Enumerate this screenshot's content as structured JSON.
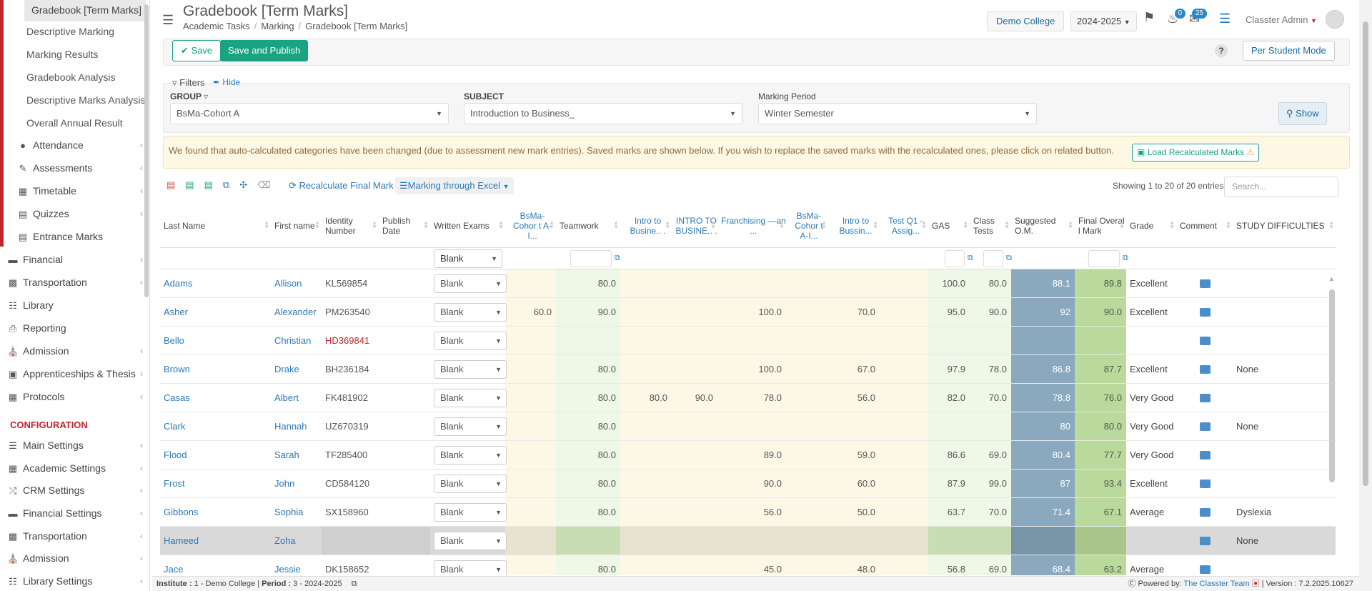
{
  "sidebar": {
    "sub_items": [
      "Gradebook [Term Marks]",
      "Descriptive Marking",
      "Marking Results",
      "Gradebook Analysis",
      "Descriptive Marks Analysis",
      "Overall Annual Result"
    ],
    "items": [
      {
        "label": "Attendance",
        "icon": "user-icon"
      },
      {
        "label": "Assessments",
        "icon": "pencil-icon"
      },
      {
        "label": "Timetable",
        "icon": "calendar-icon"
      },
      {
        "label": "Quizzes",
        "icon": "list-icon"
      },
      {
        "label": "Entrance Marks",
        "icon": "list-icon"
      },
      {
        "label": "Financial",
        "icon": "money-icon"
      },
      {
        "label": "Transportation",
        "icon": "bus-icon"
      },
      {
        "label": "Library",
        "icon": "book-icon"
      },
      {
        "label": "Reporting",
        "icon": "printer-icon"
      },
      {
        "label": "Admission",
        "icon": "building-icon"
      },
      {
        "label": "Apprenticeships & Thesis",
        "icon": "box-icon"
      },
      {
        "label": "Protocols",
        "icon": "grid-icon"
      }
    ],
    "config_label": "CONFIGURATION",
    "config_items": [
      {
        "label": "Main Settings",
        "icon": "sliders-icon"
      },
      {
        "label": "Academic Settings",
        "icon": "grid-icon"
      },
      {
        "label": "CRM Settings",
        "icon": "shuffle-icon"
      },
      {
        "label": "Financial Settings",
        "icon": "money-icon"
      },
      {
        "label": "Transportation",
        "icon": "bus-icon"
      },
      {
        "label": "Admission",
        "icon": "building-icon"
      },
      {
        "label": "Library Settings",
        "icon": "book-icon"
      }
    ]
  },
  "header": {
    "title": "Gradebook [Term Marks]",
    "breadcrumbs": [
      "Academic Tasks",
      "Marking",
      "Gradebook [Term Marks]"
    ],
    "college": "Demo College",
    "year": "2024-2025",
    "notif_count": "0",
    "msg_count": "25",
    "user": "Classter Admin"
  },
  "toolbar": {
    "save": "Save",
    "save_publish": "Save and Publish",
    "help": "?",
    "per_student": "Per Student Mode"
  },
  "filters": {
    "title": "Filters",
    "hide": "Hide",
    "group_label": "GROUP",
    "group_value": "BsMa-Cohort A",
    "subject_label": "SUBJECT",
    "subject_value": "Introduction to Business_",
    "period_label": "Marking Period",
    "period_value": "Winter Semester",
    "show": "Show"
  },
  "alert": {
    "text": "We found that auto-calculated categories have been changed (due to assessment new mark entries). Saved marks are shown below. If you wish to replace the saved marks with the recalculated ones, please click on related button.",
    "button": "Load Recalculated Marks"
  },
  "table_tools": {
    "recalc": "Recalculate Final Mark",
    "excel": "Marking through Excel",
    "showing": "Showing 1 to 20 of 20 entries",
    "search_placeholder": "Search..."
  },
  "columns": [
    "Last Name",
    "First name",
    "Identity Number",
    "Publish Date",
    "Written Exams",
    "BsMa-Cohor t A-I...",
    "Teamwork",
    "Intro to Busine.. .",
    "INTRO TO BUSINE.. .",
    "Franchising —an ...",
    "BsMa-Cohor t A-I...",
    "Intro to Bussin...",
    "Test Q1 - Assig...",
    "GAS",
    "Class Tests",
    "Suggested O.M.",
    "Final Overal l Mark",
    "Grade",
    "Comment",
    "STUDY DIFFICULTIES"
  ],
  "filter_blank": "Blank",
  "rows": [
    {
      "last": "Adams",
      "first": "Allison",
      "id": "KL569854",
      "we": "Blank",
      "c1": "",
      "tw": "80.0",
      "i1": "",
      "i2": "",
      "fr": "",
      "c2": "",
      "ib": "",
      "tq": "",
      "gas": "100.0",
      "ct": "80.0",
      "som": "88.1",
      "fom": "89.8",
      "grade": "Excellent",
      "sd": ""
    },
    {
      "last": "Asher",
      "first": "Alexander",
      "id": "PM263540",
      "we": "Blank",
      "c1": "60.0",
      "tw": "90.0",
      "i1": "",
      "i2": "",
      "fr": "100.0",
      "c2": "",
      "ib": "70.0",
      "tq": "",
      "gas": "95.0",
      "ct": "90.0",
      "som": "92",
      "fom": "90.0",
      "grade": "Excellent",
      "sd": ""
    },
    {
      "last": "Bello",
      "first": "Christian",
      "id": "HD369841",
      "we": "Blank",
      "c1": "",
      "tw": "",
      "i1": "",
      "i2": "",
      "fr": "",
      "c2": "",
      "ib": "",
      "tq": "",
      "gas": "",
      "ct": "",
      "som": "",
      "fom": "",
      "grade": "",
      "sd": ""
    },
    {
      "last": "Brown",
      "first": "Drake",
      "id": "BH236184",
      "we": "Blank",
      "c1": "",
      "tw": "80.0",
      "i1": "",
      "i2": "",
      "fr": "100.0",
      "c2": "",
      "ib": "67.0",
      "tq": "",
      "gas": "97.9",
      "ct": "78.0",
      "som": "86.8",
      "fom": "87.7",
      "grade": "Excellent",
      "sd": "None"
    },
    {
      "last": "Casas",
      "first": "Albert",
      "id": "FK481902",
      "we": "Blank",
      "c1": "",
      "tw": "80.0",
      "i1": "80.0",
      "i2": "90.0",
      "fr": "78.0",
      "c2": "",
      "ib": "56.0",
      "tq": "",
      "gas": "82.0",
      "ct": "70.0",
      "som": "78.8",
      "fom": "76.0",
      "grade": "Very Good",
      "sd": ""
    },
    {
      "last": "Clark",
      "first": "Hannah",
      "id": "UZ670319",
      "we": "Blank",
      "c1": "",
      "tw": "80.0",
      "i1": "",
      "i2": "",
      "fr": "",
      "c2": "",
      "ib": "",
      "tq": "",
      "gas": "",
      "ct": "",
      "som": "80",
      "fom": "80.0",
      "grade": "Very Good",
      "sd": "None"
    },
    {
      "last": "Flood",
      "first": "Sarah",
      "id": "TF285400",
      "we": "Blank",
      "c1": "",
      "tw": "80.0",
      "i1": "",
      "i2": "",
      "fr": "89.0",
      "c2": "",
      "ib": "59.0",
      "tq": "",
      "gas": "86.6",
      "ct": "69.0",
      "som": "80.4",
      "fom": "77.7",
      "grade": "Very Good",
      "sd": ""
    },
    {
      "last": "Frost",
      "first": "John",
      "id": "CD584120",
      "we": "Blank",
      "c1": "",
      "tw": "80.0",
      "i1": "",
      "i2": "",
      "fr": "90.0",
      "c2": "",
      "ib": "60.0",
      "tq": "",
      "gas": "87.9",
      "ct": "99.0",
      "som": "87",
      "fom": "93.4",
      "grade": "Excellent",
      "sd": ""
    },
    {
      "last": "Gibbons",
      "first": "Sophia",
      "id": "SX158960",
      "we": "Blank",
      "c1": "",
      "tw": "80.0",
      "i1": "",
      "i2": "",
      "fr": "56.0",
      "c2": "",
      "ib": "50.0",
      "tq": "",
      "gas": "63.7",
      "ct": "70.0",
      "som": "71.4",
      "fom": "67.1",
      "grade": "Average",
      "sd": "Dyslexia"
    },
    {
      "last": "Hameed",
      "first": "Zoha",
      "id": "",
      "we": "Blank",
      "c1": "",
      "tw": "",
      "i1": "",
      "i2": "",
      "fr": "",
      "c2": "",
      "ib": "",
      "tq": "",
      "gas": "",
      "ct": "",
      "som": "",
      "fom": "",
      "grade": "",
      "sd": "None"
    },
    {
      "last": "Jace",
      "first": "Jessie",
      "id": "DK158652",
      "we": "Blank",
      "c1": "",
      "tw": "80.0",
      "i1": "",
      "i2": "",
      "fr": "45.0",
      "c2": "",
      "ib": "48.0",
      "tq": "",
      "gas": "56.8",
      "ct": "69.0",
      "som": "68.4",
      "fom": "63.2",
      "grade": "Average",
      "sd": ""
    }
  ],
  "footer": {
    "institute_label": "Institute :",
    "institute": "1 - Demo College",
    "period_label": "Period :",
    "period": "3 - 2024-2025",
    "powered": "Powered by:",
    "team": "The Classter Team",
    "version_label": "Version :",
    "version": "7.2.2025.10627"
  },
  "colors": {
    "accent": "#18a383",
    "link": "#2a7ab8",
    "brand_red": "#c0272d",
    "suggested_col": "#8aa9bf",
    "final_col": "#b9da9a",
    "warn": "#fdf7e4"
  }
}
